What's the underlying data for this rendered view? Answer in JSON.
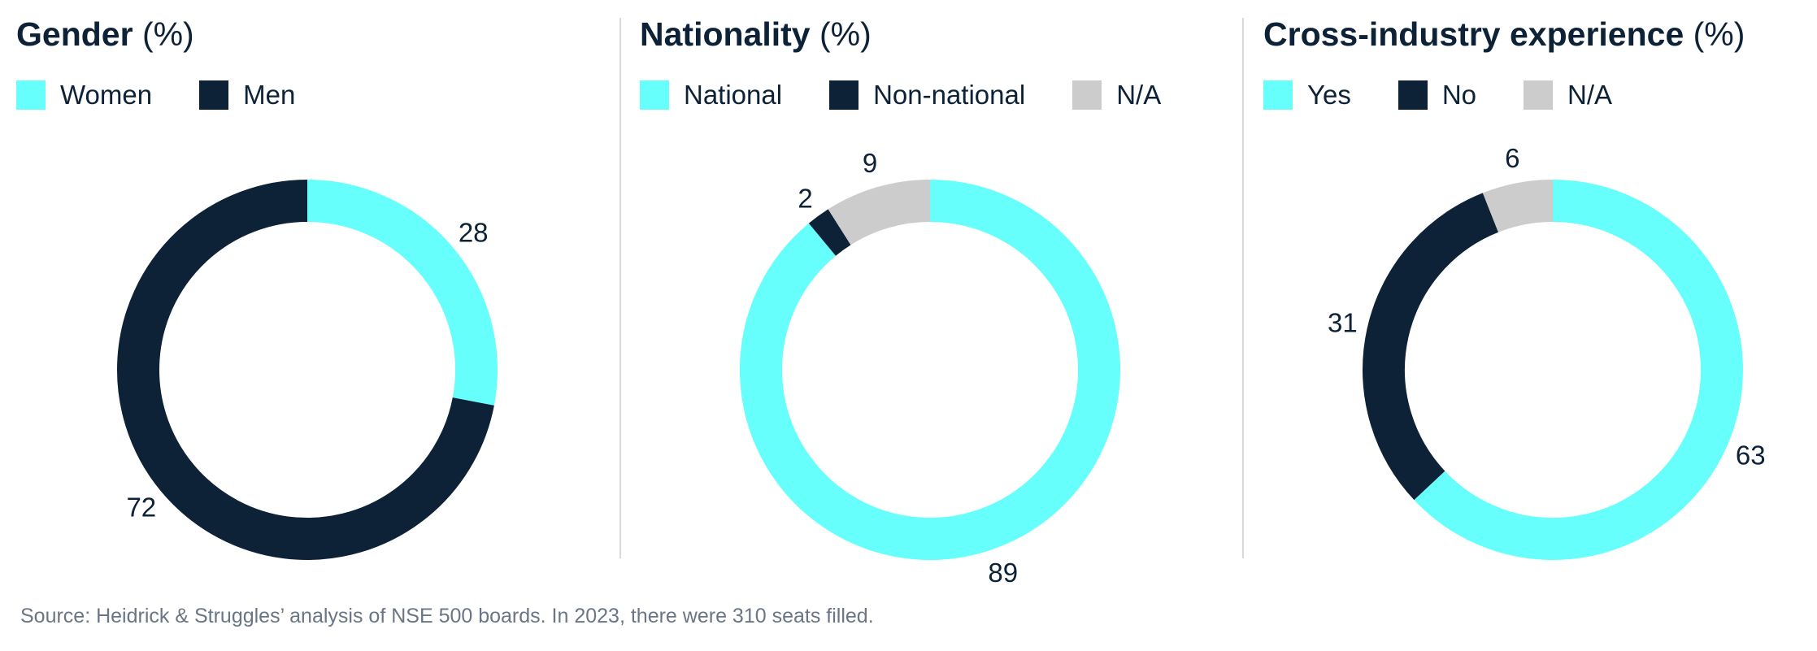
{
  "colors": {
    "cyan": "#66FFFB",
    "navy": "#0D2137",
    "gray": "#CCCCCC"
  },
  "chart_data": [
    {
      "type": "pie",
      "title": "Gender",
      "unit": "(%)",
      "categories": [
        "Women",
        "Men"
      ],
      "values": [
        28,
        72
      ],
      "colors": [
        "#66FFFB",
        "#0D2137"
      ]
    },
    {
      "type": "pie",
      "title": "Nationality",
      "unit": "(%)",
      "categories": [
        "National",
        "Non-national",
        "N/A"
      ],
      "values": [
        89,
        2,
        9
      ],
      "colors": [
        "#66FFFB",
        "#0D2137",
        "#CCCCCC"
      ]
    },
    {
      "type": "pie",
      "title": "Cross-industry experience",
      "unit": "(%)",
      "categories": [
        "Yes",
        "No",
        "N/A"
      ],
      "values": [
        63,
        31,
        6
      ],
      "colors": [
        "#66FFFB",
        "#0D2137",
        "#CCCCCC"
      ]
    }
  ],
  "source": "Source: Heidrick & Struggles’ analysis of NSE 500 boards. In 2023, there were 310 seats filled."
}
